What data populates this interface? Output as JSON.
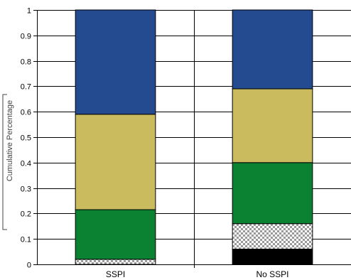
{
  "chart_data": {
    "type": "bar",
    "stacked": true,
    "cumulative": true,
    "categories": [
      "SSPI",
      "No SSPI"
    ],
    "ylabel": "Cumulative Percentage",
    "ylim": [
      0,
      1
    ],
    "yticks": [
      "0",
      "0.1",
      "0.2",
      "0.3",
      "0.4",
      "0.5",
      "0.6",
      "0.7",
      "0.8",
      "0.9",
      "1"
    ],
    "grid": true,
    "series": [
      {
        "color": "#000000",
        "pattern": "solid",
        "values": [
          0.0,
          0.06
        ]
      },
      {
        "color": "#9a9a9a",
        "pattern": "checker",
        "values": [
          0.02,
          0.1
        ]
      },
      {
        "color": "#0a8232",
        "pattern": "solid",
        "values": [
          0.195,
          0.24
        ]
      },
      {
        "color": "#c9bb5e",
        "pattern": "solid",
        "values": [
          0.375,
          0.29
        ]
      },
      {
        "color": "#244a90",
        "pattern": "solid",
        "values": [
          0.41,
          0.31
        ]
      }
    ]
  }
}
